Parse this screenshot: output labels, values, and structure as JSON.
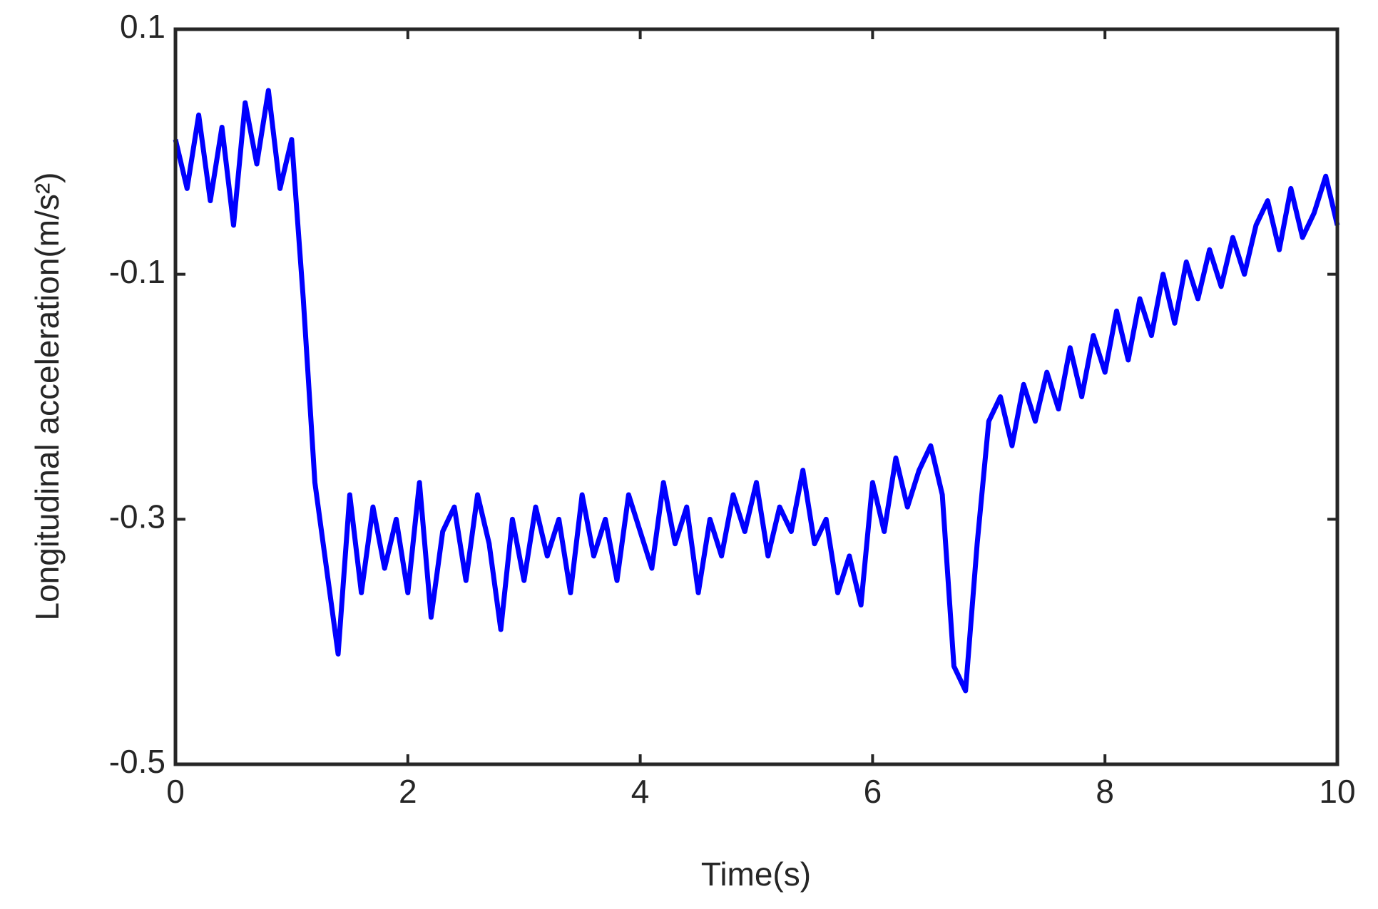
{
  "chart_data": {
    "type": "line",
    "xlabel": "Time(s)",
    "ylabel": "Longitudinal acceleration(m/s²)",
    "x": [
      0,
      0.1,
      0.2,
      0.3,
      0.4,
      0.5,
      0.6,
      0.7,
      0.8,
      0.9,
      1,
      1.1,
      1.2,
      1.3,
      1.4,
      1.5,
      1.6,
      1.7,
      1.8,
      1.9,
      2,
      2.1,
      2.2,
      2.3,
      2.4,
      2.5,
      2.6,
      2.7,
      2.8,
      2.9,
      3,
      3.1,
      3.2,
      3.3,
      3.4,
      3.5,
      3.6,
      3.7,
      3.8,
      3.9,
      4,
      4.1,
      4.2,
      4.3,
      4.4,
      4.5,
      4.6,
      4.7,
      4.8,
      4.9,
      5,
      5.1,
      5.2,
      5.3,
      5.4,
      5.5,
      5.6,
      5.7,
      5.8,
      5.9,
      6,
      6.1,
      6.2,
      6.3,
      6.4,
      6.5,
      6.6,
      6.7,
      6.8,
      6.9,
      7,
      7.1,
      7.2,
      7.3,
      7.4,
      7.5,
      7.6,
      7.7,
      7.8,
      7.9,
      8,
      8.1,
      8.2,
      8.3,
      8.4,
      8.5,
      8.6,
      8.7,
      8.8,
      8.9,
      9,
      9.1,
      9.2,
      9.3,
      9.4,
      9.5,
      9.6,
      9.7,
      9.8,
      9.9,
      10
    ],
    "series": [
      {
        "color": "#0000ff",
        "values": [
          0.01,
          -0.03,
          0.03,
          -0.04,
          0.02,
          -0.06,
          0.04,
          -0.01,
          0.05,
          -0.03,
          0.01,
          -0.12,
          -0.27,
          -0.34,
          -0.41,
          -0.28,
          -0.36,
          -0.29,
          -0.34,
          -0.3,
          -0.36,
          -0.27,
          -0.38,
          -0.31,
          -0.29,
          -0.35,
          -0.28,
          -0.32,
          -0.39,
          -0.3,
          -0.35,
          -0.29,
          -0.33,
          -0.3,
          -0.36,
          -0.28,
          -0.33,
          -0.3,
          -0.35,
          -0.28,
          -0.31,
          -0.34,
          -0.27,
          -0.32,
          -0.29,
          -0.36,
          -0.3,
          -0.33,
          -0.28,
          -0.31,
          -0.27,
          -0.33,
          -0.29,
          -0.31,
          -0.26,
          -0.32,
          -0.3,
          -0.36,
          -0.33,
          -0.37,
          -0.27,
          -0.31,
          -0.25,
          -0.29,
          -0.26,
          -0.24,
          -0.28,
          -0.42,
          -0.44,
          -0.32,
          -0.22,
          -0.2,
          -0.24,
          -0.19,
          -0.22,
          -0.18,
          -0.21,
          -0.16,
          -0.2,
          -0.15,
          -0.18,
          -0.13,
          -0.17,
          -0.12,
          -0.15,
          -0.1,
          -0.14,
          -0.09,
          -0.12,
          -0.08,
          -0.11,
          -0.07,
          -0.1,
          -0.06,
          -0.04,
          -0.08,
          -0.03,
          -0.07,
          -0.05,
          -0.02,
          -0.06
        ]
      }
    ],
    "xlim": [
      0,
      10
    ],
    "xticks": [
      0,
      2,
      4,
      6,
      8,
      10
    ],
    "ylim": [
      -0.5,
      0.1
    ],
    "yticks": [
      -0.5,
      -0.3,
      -0.1,
      0.1
    ]
  }
}
